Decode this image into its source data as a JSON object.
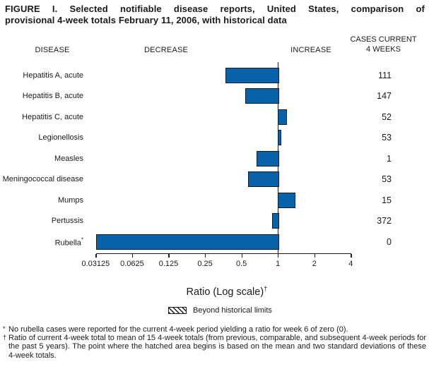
{
  "title": {
    "line1": "FIGURE I. Selected notifiable disease reports, United States, comparison of",
    "line2": "provisional 4-week totals February 11, 2006, with historical data"
  },
  "headers": {
    "disease": "DISEASE",
    "decrease": "DECREASE",
    "increase": "INCREASE",
    "cases_line1": "CASES CURRENT",
    "cases_line2": "4 WEEKS"
  },
  "chart_data": {
    "type": "bar",
    "orientation": "horizontal",
    "scale": "log2",
    "title": "Selected notifiable disease reports, United States, comparison of provisional 4-week totals February 11, 2006, with historical data",
    "xlabel": "Ratio (Log scale)",
    "xlabel_sup": "†",
    "xlim": [
      0.03125,
      4
    ],
    "baseline_value": 1,
    "tick_values": [
      0.03125,
      0.0625,
      0.125,
      0.25,
      0.5,
      1,
      2,
      4
    ],
    "tick_labels": [
      "0.03125",
      "0.0625",
      "0.125",
      "0.25",
      "0.5",
      "1",
      "2",
      "4"
    ],
    "bar_color": "#0862AA",
    "rows": [
      {
        "disease": "Hepatitis A, acute",
        "sup": "",
        "ratio": 0.37,
        "cases": "111"
      },
      {
        "disease": "Hepatitis B, acute",
        "sup": "",
        "ratio": 0.54,
        "cases": "147"
      },
      {
        "disease": "Hepatitis C, acute",
        "sup": "",
        "ratio": 1.16,
        "cases": "52"
      },
      {
        "disease": "Legionellosis",
        "sup": "",
        "ratio": 1.05,
        "cases": "53"
      },
      {
        "disease": "Measles",
        "sup": "",
        "ratio": 0.67,
        "cases": "1"
      },
      {
        "disease": "Meningococcal disease",
        "sup": "",
        "ratio": 0.57,
        "cases": "53"
      },
      {
        "disease": "Mumps",
        "sup": "",
        "ratio": 1.36,
        "cases": "15"
      },
      {
        "disease": "Pertussis",
        "sup": "",
        "ratio": 0.9,
        "cases": "372"
      },
      {
        "disease": "Rubella",
        "sup": "*",
        "ratio": 0,
        "cases": "0"
      }
    ],
    "legend": {
      "swatch": "diagonal-hatch",
      "label": "Beyond historical limits"
    }
  },
  "legend": {
    "label": "Beyond historical limits"
  },
  "footnotes": [
    {
      "marker": "*",
      "text": "No rubella cases were reported for the current 4-week period yielding a ratio for week 6 of zero (0)."
    },
    {
      "marker": "†",
      "text": "Ratio of current 4-week total to mean of 15 4-week totals (from previous, comparable, and subsequent 4-week periods for the past 5 years). The point where the hatched area begins is based on the mean and two standard deviations of these 4-week totals."
    }
  ]
}
